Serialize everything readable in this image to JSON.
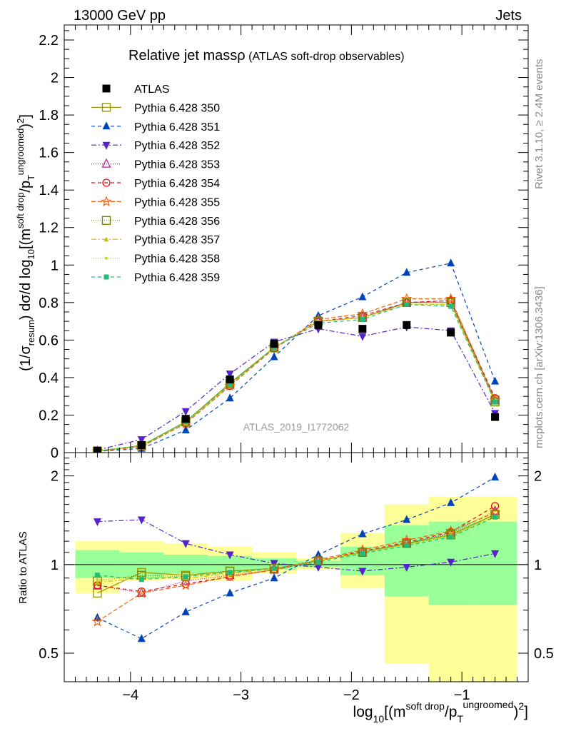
{
  "header": {
    "left": "13000 GeV pp",
    "right": "Jets",
    "title_main": "Relative jet mass",
    "title_rho": "ρ",
    "title_sub": " (ATLAS soft-drop observables)",
    "watermark": "ATLAS_2019_I1772062",
    "side_top": "Rivet 3.1.10, ≥ 2.4M events",
    "side_bottom": "mcplots.cern.ch [arXiv:1306.3436]"
  },
  "axes": {
    "ylabel_main": {
      "a": "(1/σ",
      "sub1": "resum",
      "b": ") dσ/d log",
      "sub2": "10",
      "c": "[(m",
      "sup1": "soft drop",
      "d": "/p",
      "sub3": "T",
      "sup2": "ungroomed",
      "e": ")",
      "sup3": "2",
      "f": "]"
    },
    "ylabel_ratio": "Ratio to ATLAS",
    "xlabel": {
      "a": "log",
      "sub": "10",
      "b": "[(m",
      "sup1": "soft drop",
      "c": "/p",
      "sub2": "T",
      "sup2": "ungroomed",
      "d": ")",
      "sup3": "2",
      "e": "]"
    },
    "x_ticks": [
      "−4",
      "−3",
      "−2",
      "−1"
    ],
    "y_ticks_main": [
      "0",
      "0.2",
      "0.4",
      "0.6",
      "0.8",
      "1",
      "1.2",
      "1.4",
      "1.6",
      "1.8",
      "2",
      "2.2"
    ],
    "y_ticks_ratio": [
      "0.5",
      "1",
      "2"
    ]
  },
  "chart_data": {
    "type": "scatter",
    "title": "Relative jet mass ρ (ATLAS soft-drop observables)",
    "xlim": [
      -4.6,
      -0.4
    ],
    "ylim": [
      0,
      2.28
    ],
    "ratio_ylim": [
      0.4,
      2.4
    ],
    "ratio_log": true,
    "x": [
      -4.3,
      -3.9,
      -3.5,
      -3.1,
      -2.7,
      -2.3,
      -1.9,
      -1.5,
      -1.1,
      -0.7
    ],
    "bin_edges": [
      -4.5,
      -4.1,
      -3.7,
      -3.3,
      -2.9,
      -2.5,
      -2.1,
      -1.7,
      -1.3,
      -0.9,
      -0.5
    ],
    "band_yellow": [
      [
        0.8,
        1.2
      ],
      [
        0.88,
        1.2
      ],
      [
        0.89,
        1.18
      ],
      [
        0.88,
        1.15
      ],
      [
        0.93,
        1.1
      ],
      [
        0.96,
        1.05
      ],
      [
        0.83,
        1.28
      ],
      [
        0.46,
        1.6
      ],
      [
        0.33,
        1.7
      ],
      [
        0.33,
        1.7
      ]
    ],
    "band_green": [
      [
        0.9,
        1.12
      ],
      [
        0.9,
        1.1
      ],
      [
        0.93,
        1.08
      ],
      [
        0.94,
        1.07
      ],
      [
        0.96,
        1.05
      ],
      [
        0.98,
        1.03
      ],
      [
        0.92,
        1.15
      ],
      [
        0.78,
        1.36
      ],
      [
        0.73,
        1.4
      ],
      [
        0.73,
        1.4
      ]
    ],
    "data": {
      "name": "ATLAS",
      "values": [
        0.01,
        0.04,
        0.18,
        0.39,
        0.58,
        0.68,
        0.66,
        0.68,
        0.64,
        0.19
      ]
    },
    "series": [
      {
        "name": "Pythia 6.428 350",
        "color": "#999900",
        "dash": "",
        "marker": "square-open",
        "values": [
          0.008,
          0.038,
          0.165,
          0.37,
          0.56,
          0.7,
          0.72,
          0.8,
          0.8,
          0.28
        ],
        "ratio": [
          0.8,
          0.94,
          0.92,
          0.95,
          0.97,
          1.03,
          1.1,
          1.18,
          1.26,
          1.48
        ]
      },
      {
        "name": "Pythia 6.428 351",
        "color": "#0044bb",
        "dash": "5,4",
        "marker": "triangle-up",
        "values": [
          0.0066,
          0.022,
          0.12,
          0.29,
          0.51,
          0.73,
          0.83,
          0.96,
          1.01,
          0.38
        ],
        "ratio": [
          0.66,
          0.56,
          0.69,
          0.8,
          0.9,
          1.08,
          1.27,
          1.42,
          1.62,
          1.98
        ]
      },
      {
        "name": "Pythia 6.428 352",
        "color": "#5522cc",
        "dash": "7,3,2,3",
        "marker": "triangle-down",
        "values": [
          0.014,
          0.07,
          0.22,
          0.42,
          0.59,
          0.66,
          0.62,
          0.67,
          0.65,
          0.21
        ],
        "ratio": [
          1.4,
          1.42,
          1.18,
          1.08,
          1.01,
          0.98,
          0.95,
          0.98,
          1.02,
          1.09
        ]
      },
      {
        "name": "Pythia 6.428 353",
        "color": "#bb2299",
        "dash": "1,2",
        "marker": "triangle-open",
        "values": [
          0.0085,
          0.032,
          0.16,
          0.36,
          0.56,
          0.7,
          0.72,
          0.8,
          0.81,
          0.28
        ],
        "ratio": [
          0.85,
          0.8,
          0.88,
          0.92,
          0.96,
          1.03,
          1.1,
          1.18,
          1.28,
          1.52
        ]
      },
      {
        "name": "Pythia 6.428 354",
        "color": "#dd1111",
        "dash": "5,4",
        "marker": "circle-open",
        "values": [
          0.0085,
          0.032,
          0.155,
          0.355,
          0.555,
          0.7,
          0.73,
          0.8,
          0.81,
          0.29
        ],
        "ratio": [
          0.85,
          0.81,
          0.86,
          0.91,
          0.96,
          1.03,
          1.11,
          1.19,
          1.29,
          1.58
        ]
      },
      {
        "name": "Pythia 6.428 355",
        "color": "#ee6611",
        "dash": "6,3",
        "marker": "star-open",
        "values": [
          0.0065,
          0.032,
          0.155,
          0.355,
          0.555,
          0.71,
          0.74,
          0.82,
          0.82,
          0.28
        ],
        "ratio": [
          0.64,
          0.8,
          0.85,
          0.91,
          0.96,
          1.04,
          1.12,
          1.21,
          1.3,
          1.5
        ]
      },
      {
        "name": "Pythia 6.428 356",
        "color": "#778800",
        "dash": "1,2",
        "marker": "square-open",
        "values": [
          0.009,
          0.037,
          0.165,
          0.37,
          0.56,
          0.7,
          0.72,
          0.8,
          0.8,
          0.27
        ],
        "ratio": [
          0.88,
          0.92,
          0.91,
          0.95,
          0.97,
          1.03,
          1.1,
          1.18,
          1.27,
          1.48
        ]
      },
      {
        "name": "Pythia 6.428 357",
        "color": "#ccbb00",
        "dash": "7,3,2,3",
        "marker": "tri-small",
        "values": [
          0.0088,
          0.036,
          0.16,
          0.36,
          0.56,
          0.7,
          0.72,
          0.79,
          0.79,
          0.27
        ],
        "ratio": [
          0.87,
          0.9,
          0.9,
          0.93,
          0.97,
          1.03,
          1.1,
          1.17,
          1.25,
          1.46
        ]
      },
      {
        "name": "Pythia 6.428 358",
        "color": "#bbdd22",
        "dash": "1,2",
        "marker": "dot",
        "values": [
          0.009,
          0.036,
          0.16,
          0.36,
          0.56,
          0.7,
          0.72,
          0.79,
          0.79,
          0.27
        ],
        "ratio": [
          0.89,
          0.9,
          0.91,
          0.94,
          0.97,
          1.03,
          1.1,
          1.17,
          1.26,
          1.46
        ]
      },
      {
        "name": "Pythia 6.428 359",
        "color": "#22bb77",
        "dash": "5,4",
        "marker": "square-small",
        "values": [
          0.0092,
          0.036,
          0.165,
          0.365,
          0.56,
          0.69,
          0.71,
          0.79,
          0.78,
          0.27
        ],
        "ratio": [
          0.92,
          0.89,
          0.91,
          0.94,
          0.97,
          1.02,
          1.09,
          1.16,
          1.24,
          1.45
        ]
      }
    ]
  }
}
